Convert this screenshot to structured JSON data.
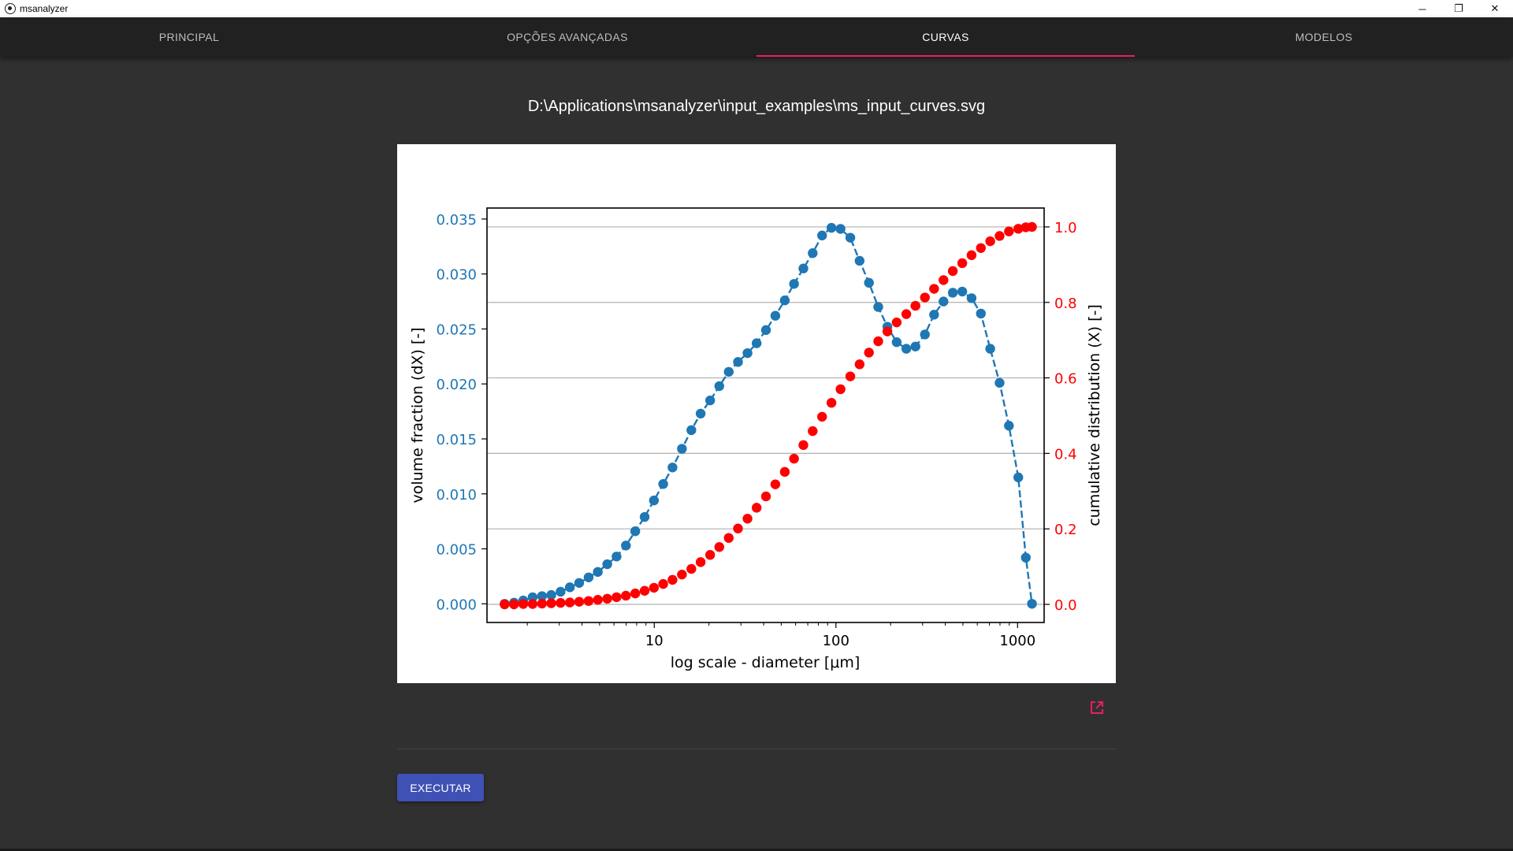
{
  "window": {
    "title": "msanalyzer",
    "icon": "app-logo-icon",
    "controls": {
      "minimize": "─",
      "restore": "❐",
      "close": "✕"
    }
  },
  "tabs": [
    {
      "label": "PRINCIPAL",
      "active": false
    },
    {
      "label": "OPÇÕES AVANÇADAS",
      "active": false
    },
    {
      "label": "CURVAS",
      "active": true
    },
    {
      "label": "MODELOS",
      "active": false
    }
  ],
  "file_path": "D:\\Applications\\msanalyzer\\input_examples\\ms_input_curves.svg",
  "open_external_icon": "open-in-new-icon",
  "execute_label": "EXECUTAR",
  "colors": {
    "accent": "#e91e63",
    "primary_button": "#3f51b5",
    "series_dx": "#1f77b4",
    "series_x": "#ff0000"
  },
  "chart_data": {
    "type": "scatter",
    "xscale": "log",
    "xlabel": "log scale - diameter [μm]",
    "ylabel_left": "volume fraction (dX) [-]",
    "ylabel_right": "cumulative distribution (X) [-]",
    "xlim": [
      1.2,
      1400
    ],
    "ylim_left": [
      -0.0017,
      0.036
    ],
    "ylim_right": [
      -0.048,
      1.05
    ],
    "xticks": [
      10,
      100,
      1000
    ],
    "xtick_labels": [
      "10",
      "100",
      "1000"
    ],
    "yticks_left": [
      0.0,
      0.005,
      0.01,
      0.015,
      0.02,
      0.025,
      0.03,
      0.035
    ],
    "ytick_labels_left": [
      "0.000",
      "0.005",
      "0.010",
      "0.015",
      "0.020",
      "0.025",
      "0.030",
      "0.035"
    ],
    "yticks_right": [
      0.0,
      0.2,
      0.4,
      0.6,
      0.8,
      1.0
    ],
    "ytick_labels_right": [
      "0.0",
      "0.2",
      "0.4",
      "0.6",
      "0.8",
      "1.0"
    ],
    "grid": "horizontal, right axis",
    "x": [
      1.5,
      1.69,
      1.9,
      2.14,
      2.41,
      2.71,
      3.05,
      3.43,
      3.86,
      4.35,
      4.89,
      5.51,
      6.2,
      6.98,
      7.86,
      8.85,
      9.96,
      11.2,
      12.6,
      14.2,
      16.0,
      18.0,
      20.3,
      22.8,
      25.7,
      28.9,
      32.6,
      36.6,
      41.2,
      46.4,
      52.3,
      58.8,
      66.2,
      74.5,
      83.9,
      94.5,
      106,
      120,
      135,
      152,
      171,
      192,
      216,
      244,
      274,
      309,
      347,
      391,
      440,
      496,
      558,
      628,
      707,
      796,
      896,
      1009,
      1110,
      1200
    ],
    "series": [
      {
        "name": "volume fraction (dX)",
        "axis": "left",
        "style": "dashed line with markers",
        "values": [
          0.0,
          0.0001,
          0.0003,
          0.0006,
          0.0007,
          0.0008,
          0.0011,
          0.0015,
          0.0019,
          0.0024,
          0.0029,
          0.0036,
          0.0043,
          0.0053,
          0.0066,
          0.0079,
          0.0094,
          0.0109,
          0.0124,
          0.0141,
          0.0158,
          0.0173,
          0.0185,
          0.0198,
          0.0211,
          0.022,
          0.0228,
          0.0237,
          0.0249,
          0.0262,
          0.0276,
          0.0291,
          0.0305,
          0.0319,
          0.0335,
          0.0342,
          0.0341,
          0.0333,
          0.0312,
          0.0292,
          0.027,
          0.0252,
          0.0238,
          0.0232,
          0.0234,
          0.0245,
          0.0263,
          0.0275,
          0.0283,
          0.0284,
          0.0278,
          0.0264,
          0.0232,
          0.0201,
          0.0162,
          0.0115,
          0.0042,
          0.0
        ]
      },
      {
        "name": "cumulative distribution (X)",
        "axis": "right",
        "style": "markers",
        "values": [
          0.0,
          0.0,
          0.001,
          0.001,
          0.002,
          0.003,
          0.004,
          0.005,
          0.007,
          0.009,
          0.012,
          0.015,
          0.019,
          0.023,
          0.029,
          0.036,
          0.044,
          0.054,
          0.065,
          0.079,
          0.094,
          0.112,
          0.131,
          0.152,
          0.176,
          0.201,
          0.227,
          0.256,
          0.286,
          0.318,
          0.351,
          0.386,
          0.422,
          0.459,
          0.497,
          0.534,
          0.57,
          0.604,
          0.636,
          0.667,
          0.697,
          0.723,
          0.747,
          0.769,
          0.791,
          0.813,
          0.836,
          0.859,
          0.883,
          0.904,
          0.925,
          0.944,
          0.962,
          0.976,
          0.988,
          0.995,
          0.999,
          1.0
        ]
      }
    ]
  }
}
